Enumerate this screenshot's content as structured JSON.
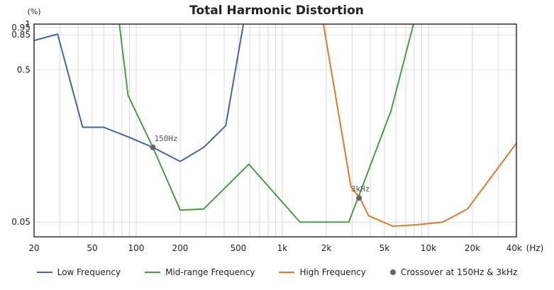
{
  "chart_data": {
    "type": "line",
    "title": "Total Harmonic Distortion",
    "y_unit": "(%)",
    "x_unit": "(Hz)",
    "x_scale": "log",
    "y_scale": "log",
    "xlim": [
      20,
      40000
    ],
    "ylim": [
      0.04,
      1
    ],
    "grid": true,
    "legend_position": "bottom",
    "x_ticks": [
      {
        "value": 20,
        "label": "20"
      },
      {
        "value": 50,
        "label": "50"
      },
      {
        "value": 100,
        "label": "100"
      },
      {
        "value": 200,
        "label": "200"
      },
      {
        "value": 500,
        "label": "500"
      },
      {
        "value": 1000,
        "label": "1k"
      },
      {
        "value": 2000,
        "label": "2k"
      },
      {
        "value": 5000,
        "label": "5k"
      },
      {
        "value": 10000,
        "label": "10k"
      },
      {
        "value": 20000,
        "label": "20k"
      },
      {
        "value": 40000,
        "label": "40k"
      }
    ],
    "y_ticks": [
      {
        "value": 1,
        "label": "1"
      },
      {
        "value": 0.95,
        "label": "0.95"
      },
      {
        "value": 0.85,
        "label": "0.85"
      },
      {
        "value": 0.5,
        "label": "0.5"
      },
      {
        "value": 0.05,
        "label": "0.05"
      }
    ],
    "series": [
      {
        "name": "Low Frequency",
        "color": "#4a60a8",
        "points": [
          [
            20,
            0.78
          ],
          [
            29,
            0.86
          ],
          [
            43,
            0.21
          ],
          [
            60,
            0.21
          ],
          [
            90,
            0.18
          ],
          [
            130,
            0.155
          ],
          [
            200,
            0.125
          ],
          [
            290,
            0.155
          ],
          [
            410,
            0.215
          ],
          [
            560,
            1.2
          ]
        ]
      },
      {
        "name": "Mid-range Frequency",
        "color": "#4c9a48",
        "points": [
          [
            75,
            1.2
          ],
          [
            88,
            0.34
          ],
          [
            130,
            0.155
          ],
          [
            200,
            0.06
          ],
          [
            290,
            0.061
          ],
          [
            590,
            0.12
          ],
          [
            1320,
            0.05
          ],
          [
            2850,
            0.05
          ],
          [
            3900,
            0.11
          ],
          [
            5550,
            0.27
          ],
          [
            8300,
            1.2
          ]
        ]
      },
      {
        "name": "High Frequency",
        "color": "#de7a2e",
        "points": [
          [
            1850,
            1.2
          ],
          [
            2950,
            0.085
          ],
          [
            3400,
            0.072
          ],
          [
            3900,
            0.055
          ],
          [
            5700,
            0.047
          ],
          [
            8300,
            0.048
          ],
          [
            12500,
            0.05
          ],
          [
            18500,
            0.061
          ],
          [
            40000,
            0.165
          ]
        ]
      }
    ],
    "crossovers": {
      "name": "Crossover at 150Hz & 3kHz",
      "color": "#666666",
      "points": [
        {
          "x": 130,
          "y": 0.155,
          "label": "150Hz"
        },
        {
          "x": 3350,
          "y": 0.072,
          "label": "3kHz"
        }
      ]
    }
  }
}
